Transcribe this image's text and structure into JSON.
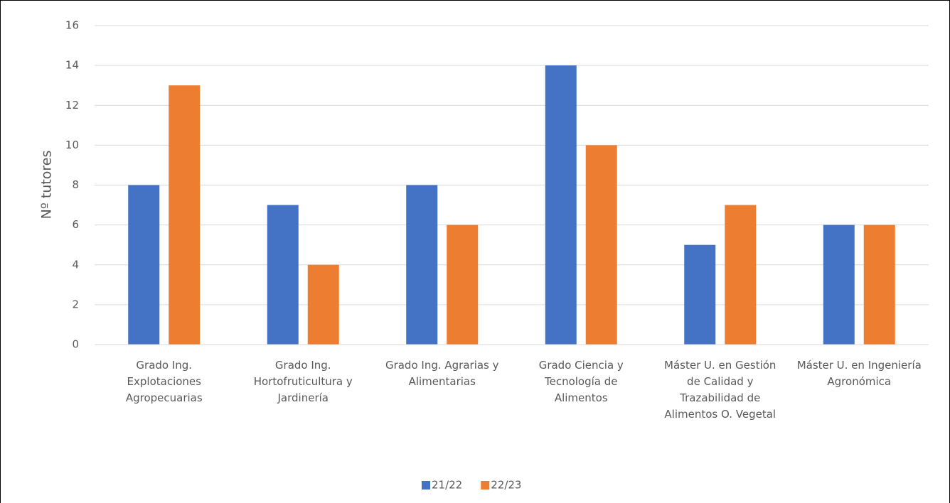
{
  "chart_data": {
    "type": "bar",
    "y_label": "Nº tutores",
    "categories": [
      "Grado Ing. Explotaciones Agropecuarias",
      "Grado Ing. Hortofruticultura y Jardinería",
      "Grado Ing. Agrarias y Alimentarias",
      "Grado Ciencia y Tecnología de Alimentos",
      "Máster U. en Gestión de Calidad y Trazabilidad de Alimentos O. Vegetal",
      "Máster U. en Ingeniería Agronómica"
    ],
    "series": [
      {
        "name": "21/22",
        "color": "#4472c4",
        "values": [
          8,
          7,
          8,
          14,
          5,
          6
        ]
      },
      {
        "name": "22/23",
        "color": "#ed7d31",
        "values": [
          13,
          4,
          6,
          10,
          7,
          6
        ]
      }
    ],
    "ylim": [
      0,
      16
    ],
    "yticks": [
      0,
      2,
      4,
      6,
      8,
      10,
      12,
      14,
      16
    ],
    "grid": true,
    "legend": "bottom"
  }
}
